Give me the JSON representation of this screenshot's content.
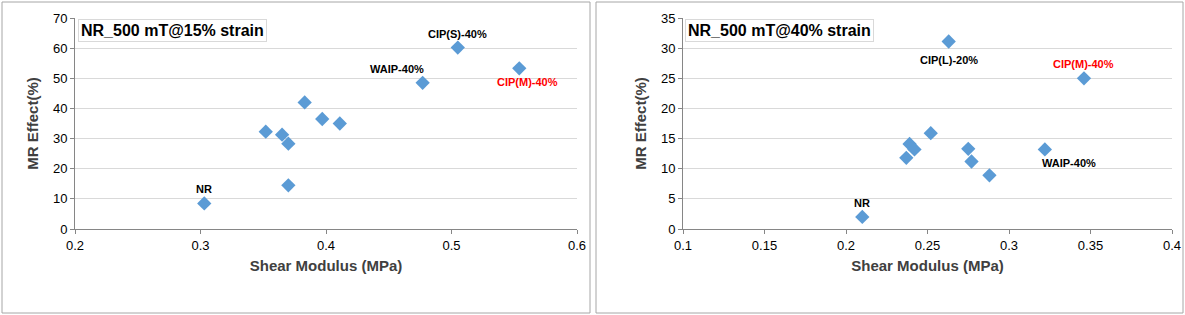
{
  "chart_data": [
    {
      "type": "scatter",
      "title": "NR_500 mT@15% strain",
      "x_label": "Shear Modulus (MPa)",
      "y_label": "MR Effect(%)",
      "x": [
        0.303,
        0.352,
        0.365,
        0.37,
        0.37,
        0.383,
        0.397,
        0.411,
        0.477,
        0.505,
        0.554
      ],
      "values": [
        8.5,
        32.3,
        31.3,
        28.3,
        14.5,
        42,
        36.5,
        35,
        48.5,
        60.2,
        53.3
      ],
      "color": "#5b9bd5",
      "marker": "diamond",
      "grid": "y",
      "xlim": [
        0.2,
        0.6
      ],
      "xticks": [
        0.2,
        0.3,
        0.4,
        0.5,
        0.6
      ],
      "ylim": [
        0,
        70
      ],
      "yticks": [
        0,
        10,
        20,
        30,
        40,
        50,
        60,
        70
      ],
      "annotations": [
        {
          "text": "NR",
          "point": 0,
          "color": "#000000"
        },
        {
          "text": "WAIP-40%",
          "point": 8,
          "color": "#000000"
        },
        {
          "text": "CIP(S)-40%",
          "point": 9,
          "color": "#000000"
        },
        {
          "text": "CIP(M)-40%",
          "point": 10,
          "color": "#ff0000"
        }
      ]
    },
    {
      "type": "scatter",
      "title": "NR_500 mT@40% strain",
      "x_label": "Shear Modulus (MPa)",
      "y_label": "MR Effect(%)",
      "x": [
        0.21,
        0.237,
        0.239,
        0.242,
        0.252,
        0.263,
        0.275,
        0.277,
        0.288,
        0.322,
        0.346
      ],
      "values": [
        2,
        11.8,
        14.1,
        13.2,
        15.9,
        31.1,
        13.3,
        11.2,
        8.9,
        13.2,
        25
      ],
      "color": "#5b9bd5",
      "marker": "diamond",
      "grid": "y",
      "xlim": [
        0.1,
        0.4
      ],
      "xticks": [
        0.1,
        0.15,
        0.2,
        0.25,
        0.3,
        0.35,
        0.4
      ],
      "ylim": [
        0,
        35
      ],
      "yticks": [
        0,
        5,
        10,
        15,
        20,
        25,
        30,
        35
      ],
      "annotations": [
        {
          "text": "NR",
          "point": 0,
          "color": "#000000"
        },
        {
          "text": "CIP(L)-20%",
          "point": 5,
          "color": "#000000"
        },
        {
          "text": "WAIP-40%",
          "point": 9,
          "color": "#000000"
        },
        {
          "text": "CIP(M)-40%",
          "point": 10,
          "color": "#ff0000"
        }
      ]
    }
  ]
}
